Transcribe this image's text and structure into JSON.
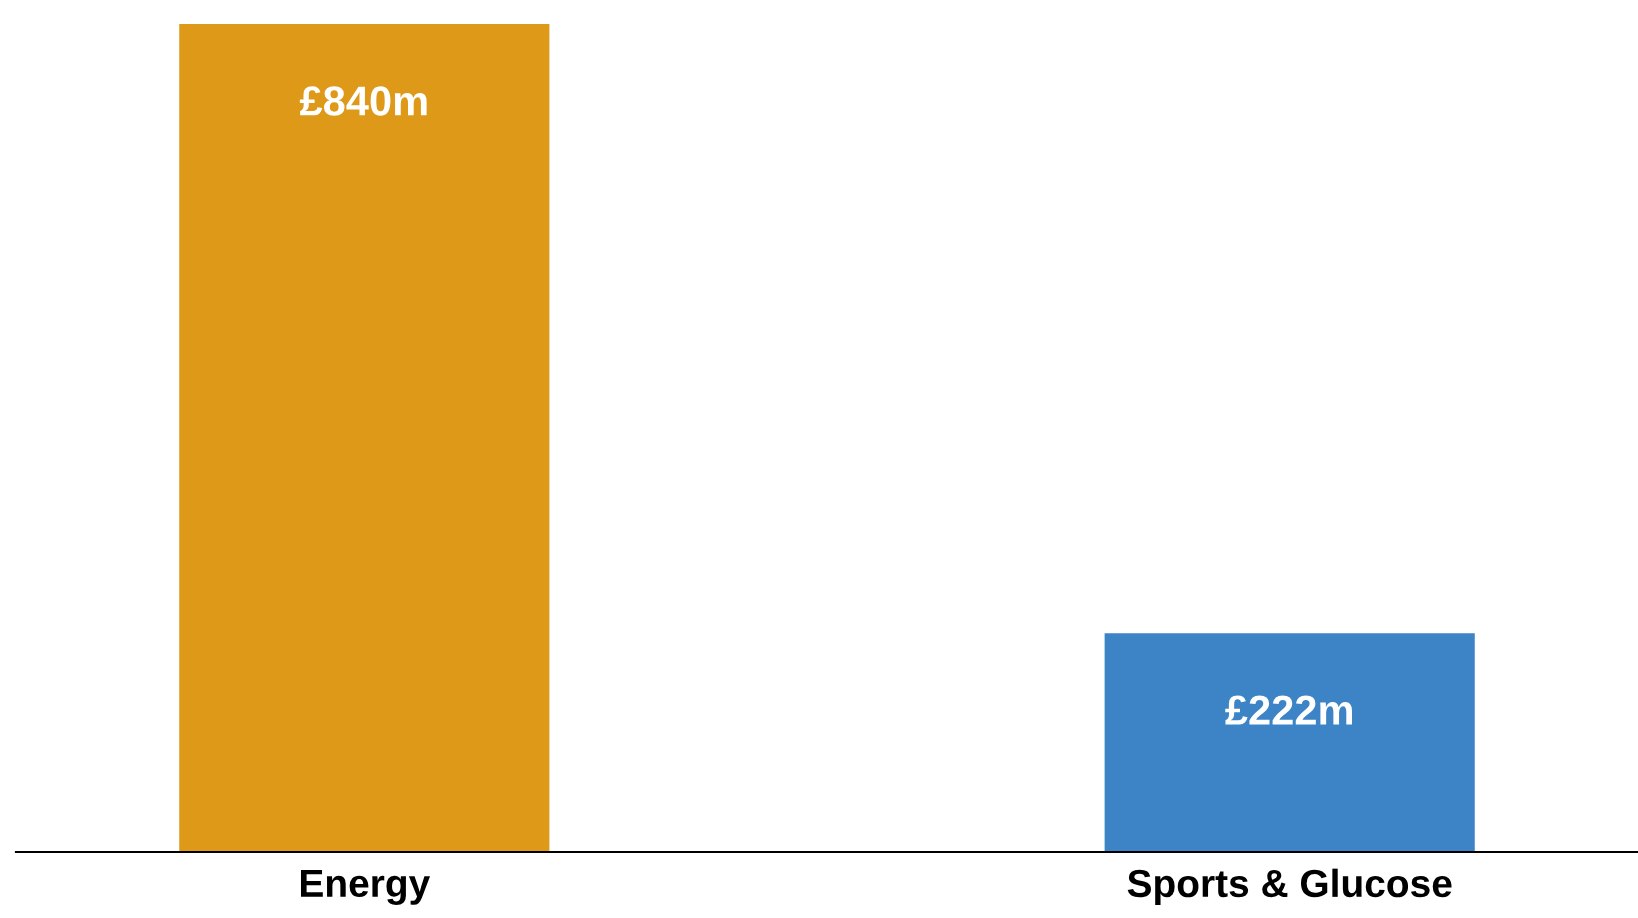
{
  "chart_data": {
    "type": "bar",
    "categories": [
      "Energy",
      "Sports & Glucose"
    ],
    "values": [
      840,
      222
    ],
    "colors": [
      "#dd9917",
      "#3d84c6"
    ],
    "value_labels": [
      "£840m",
      "£222m"
    ]
  }
}
